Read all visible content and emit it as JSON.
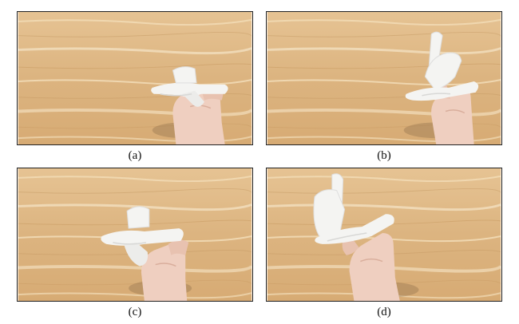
{
  "figure": {
    "panels": [
      {
        "id": "a",
        "caption": "(a)"
      },
      {
        "id": "b",
        "caption": "(b)"
      },
      {
        "id": "c",
        "caption": "(c)"
      },
      {
        "id": "d",
        "caption": "(d)"
      }
    ]
  },
  "colors": {
    "wood_light": "#e9c99b",
    "wood_mid": "#d9b27e",
    "wood_grain": "#f6e3c2",
    "object_white": "#f4f4f2",
    "object_shadow": "#d8d8d6",
    "skin": "#efcfc0",
    "skin_shadow": "#d9ae9c",
    "hand_shadow": "#8a6a48"
  },
  "icons": [
    "wood-table-background",
    "white-3d-printed-object",
    "hand"
  ]
}
